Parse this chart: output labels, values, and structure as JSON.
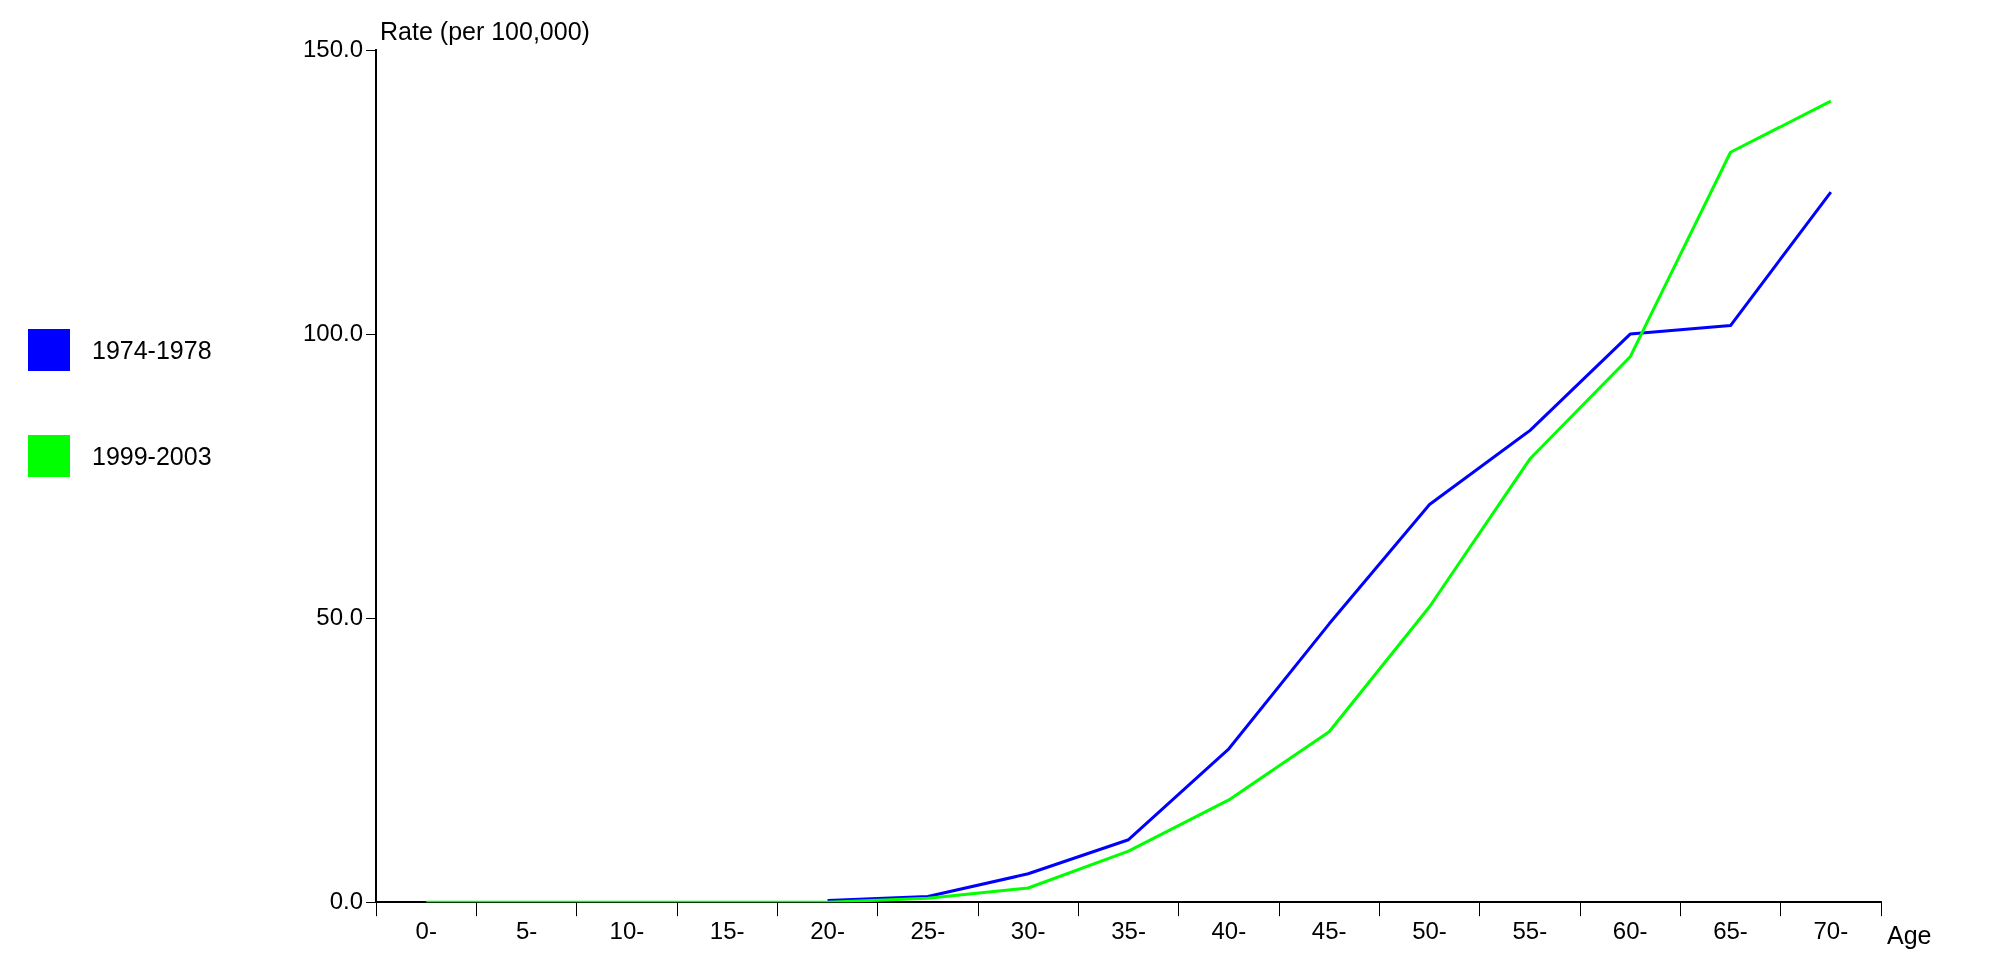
{
  "chart_data": {
    "type": "line",
    "xlabel": "Age",
    "ylabel": "Rate (per 100,000)",
    "categories": [
      "0-",
      "5-",
      "10-",
      "15-",
      "20-",
      "25-",
      "30-",
      "35-",
      "40-",
      "45-",
      "50-",
      "55-",
      "60-",
      "65-",
      "70-"
    ],
    "series": [
      {
        "name": "1974-1978",
        "color": "#0000ff",
        "values": [
          null,
          null,
          null,
          null,
          0.3,
          1,
          5,
          11,
          27,
          49,
          70,
          83,
          100,
          101.5,
          125
        ]
      },
      {
        "name": "1999-2003",
        "color": "#00ff00",
        "values": [
          0,
          0,
          0,
          0,
          0,
          0.7,
          2.5,
          9,
          18,
          30,
          52,
          78,
          96,
          132,
          141
        ]
      }
    ],
    "ylim": [
      0,
      150
    ],
    "yticks": [
      {
        "value": 0,
        "label": "0.0"
      },
      {
        "value": 50,
        "label": "50.0"
      },
      {
        "value": 100,
        "label": "100.0"
      },
      {
        "value": 150,
        "label": "150.0"
      }
    ],
    "grid": false,
    "legend": "left",
    "marker": "none",
    "line_style": "solid"
  }
}
